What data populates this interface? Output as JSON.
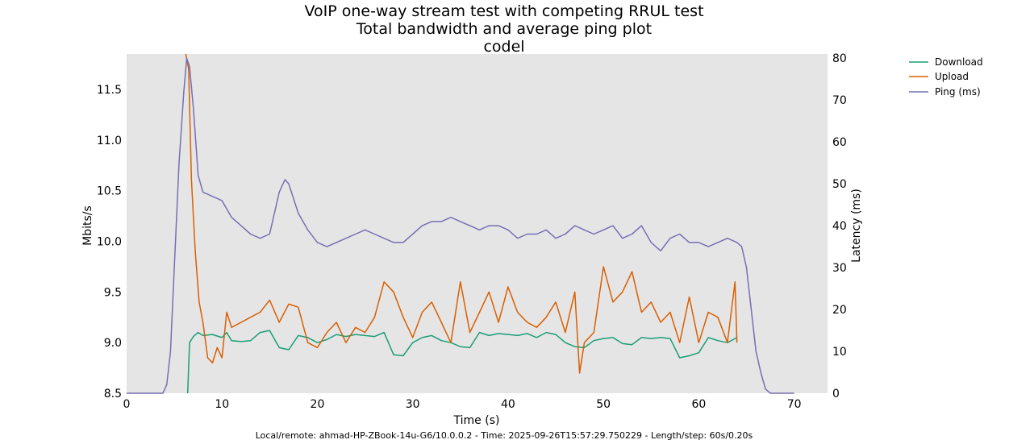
{
  "chart_data": {
    "type": "line",
    "title_lines": [
      "VoIP one-way stream test with competing RRUL test",
      "Total bandwidth and average ping plot",
      "codel"
    ],
    "xlabel": "Time (s)",
    "ylabel_left": "Mbits/s",
    "ylabel_right": "Latency (ms)",
    "xlim": [
      0,
      73.5
    ],
    "ylim_left": [
      8.5,
      11.85
    ],
    "ylim_right": [
      0,
      81
    ],
    "x_ticks": [
      0,
      10,
      20,
      30,
      40,
      50,
      60,
      70
    ],
    "y_ticks_left": [
      8.5,
      9.0,
      9.5,
      10.0,
      10.5,
      11.0,
      11.5
    ],
    "y_ticks_left_labels": [
      "8.5",
      "9.0",
      "9.5",
      "10.0",
      "10.5",
      "11.0",
      "11.5"
    ],
    "y_ticks_right": [
      0,
      10,
      20,
      30,
      40,
      50,
      60,
      70,
      80
    ],
    "grid": false,
    "background": "#e5e5e5",
    "legend_position": "outside-top-right",
    "series": [
      {
        "name": "Download",
        "axis": "left",
        "color": "#1b9e77",
        "x": [
          6.4,
          6.6,
          7.0,
          7.5,
          8.0,
          9.0,
          10.0,
          10.5,
          11.0,
          12.0,
          13.0,
          14.0,
          15.0,
          16.0,
          17.0,
          18.0,
          19.0,
          20.0,
          21.0,
          22.0,
          23.0,
          24.0,
          25.0,
          26.0,
          27.0,
          28.0,
          29.0,
          30.0,
          31.0,
          32.0,
          33.0,
          34.0,
          35.0,
          36.0,
          37.0,
          38.0,
          39.0,
          40.0,
          41.0,
          42.0,
          43.0,
          44.0,
          45.0,
          46.0,
          47.0,
          48.0,
          49.0,
          50.0,
          51.0,
          52.0,
          53.0,
          54.0,
          55.0,
          56.0,
          57.0,
          58.0,
          59.0,
          60.0,
          61.0,
          62.0,
          63.0,
          64.0
        ],
        "values": [
          8.5,
          9.0,
          9.06,
          9.1,
          9.07,
          9.08,
          9.05,
          9.1,
          9.02,
          9.01,
          9.02,
          9.1,
          9.12,
          8.95,
          8.93,
          9.07,
          9.05,
          9.0,
          9.03,
          9.08,
          9.06,
          9.08,
          9.07,
          9.06,
          9.1,
          8.88,
          8.87,
          9.0,
          9.05,
          9.07,
          9.02,
          9.0,
          8.96,
          8.95,
          9.1,
          9.07,
          9.09,
          9.08,
          9.07,
          9.09,
          9.05,
          9.1,
          9.08,
          9.0,
          8.96,
          8.95,
          9.02,
          9.04,
          9.05,
          8.99,
          8.98,
          9.05,
          9.04,
          9.05,
          9.04,
          8.85,
          8.87,
          8.9,
          9.05,
          9.02,
          9.0,
          9.05
        ]
      },
      {
        "name": "Upload",
        "axis": "left",
        "color": "#d95f02",
        "x": [
          6.2,
          6.5,
          6.8,
          7.2,
          7.6,
          8.0,
          8.5,
          9.0,
          9.5,
          10.0,
          10.5,
          11.0,
          12.0,
          13.0,
          14.0,
          15.0,
          16.0,
          17.0,
          18.0,
          19.0,
          20.0,
          21.0,
          22.0,
          23.0,
          24.0,
          25.0,
          26.0,
          27.0,
          28.0,
          29.0,
          30.0,
          31.0,
          32.0,
          33.0,
          34.0,
          35.0,
          36.0,
          37.0,
          38.0,
          39.0,
          40.0,
          41.0,
          42.0,
          43.0,
          44.0,
          45.0,
          46.0,
          47.0,
          47.5,
          48.0,
          49.0,
          50.0,
          51.0,
          52.0,
          53.0,
          54.0,
          55.0,
          56.0,
          57.0,
          58.0,
          59.0,
          60.0,
          61.0,
          62.0,
          63.0,
          63.8,
          64.0
        ],
        "values": [
          11.85,
          11.7,
          10.6,
          9.9,
          9.4,
          9.2,
          8.85,
          8.8,
          8.95,
          8.85,
          9.3,
          9.15,
          9.2,
          9.25,
          9.3,
          9.42,
          9.2,
          9.38,
          9.35,
          9.0,
          8.95,
          9.1,
          9.2,
          9.0,
          9.15,
          9.1,
          9.25,
          9.6,
          9.5,
          9.25,
          9.05,
          9.3,
          9.4,
          9.2,
          9.0,
          9.6,
          9.1,
          9.3,
          9.5,
          9.2,
          9.55,
          9.3,
          9.2,
          9.15,
          9.25,
          9.4,
          9.1,
          9.5,
          8.7,
          9.0,
          9.1,
          9.75,
          9.4,
          9.5,
          9.7,
          9.3,
          9.4,
          9.2,
          9.3,
          9.0,
          9.45,
          9.0,
          9.3,
          9.25,
          9.0,
          9.6,
          9.0
        ]
      },
      {
        "name": "Ping (ms)",
        "axis": "right",
        "color": "#7570b3",
        "x": [
          0,
          1,
          2,
          3,
          3.8,
          4.2,
          4.6,
          5.0,
          5.5,
          6.0,
          6.3,
          6.6,
          7.0,
          7.5,
          8.0,
          9.0,
          10.0,
          11.0,
          12.0,
          13.0,
          14.0,
          15.0,
          16.0,
          16.6,
          17.0,
          18.0,
          19.0,
          20.0,
          21.0,
          22.0,
          23.0,
          24.0,
          25.0,
          26.0,
          27.0,
          28.0,
          29.0,
          30.0,
          31.0,
          32.0,
          33.0,
          34.0,
          35.0,
          36.0,
          37.0,
          38.0,
          39.0,
          40.0,
          41.0,
          42.0,
          43.0,
          44.0,
          45.0,
          46.0,
          47.0,
          48.0,
          49.0,
          50.0,
          51.0,
          52.0,
          53.0,
          54.0,
          55.0,
          56.0,
          57.0,
          58.0,
          59.0,
          60.0,
          61.0,
          62.0,
          63.0,
          64.0,
          64.5,
          65.0,
          65.5,
          66.0,
          66.5,
          67.0,
          67.5,
          68.0,
          69.0,
          70.0
        ],
        "values": [
          0,
          0,
          0,
          0,
          0,
          2,
          10,
          30,
          55,
          72,
          80,
          78,
          68,
          52,
          48,
          47,
          46,
          42,
          40,
          38,
          37,
          38,
          48,
          51,
          50,
          43,
          39,
          36,
          35,
          36,
          37,
          38,
          39,
          38,
          37,
          36,
          36,
          38,
          40,
          41,
          41,
          42,
          41,
          40,
          39,
          40,
          40,
          39,
          37,
          38,
          38,
          39,
          37,
          38,
          40,
          39,
          38,
          39,
          40,
          37,
          38,
          40,
          36,
          34,
          37,
          38,
          36,
          36,
          35,
          36,
          37,
          36,
          35,
          30,
          20,
          10,
          5,
          1,
          0,
          0,
          0,
          0
        ]
      }
    ]
  },
  "footer": "Local/remote: ahmad-HP-ZBook-14u-G6/10.0.0.2 - Time: 2025-09-26T15:57:29.750229 - Length/step: 60s/0.20s"
}
